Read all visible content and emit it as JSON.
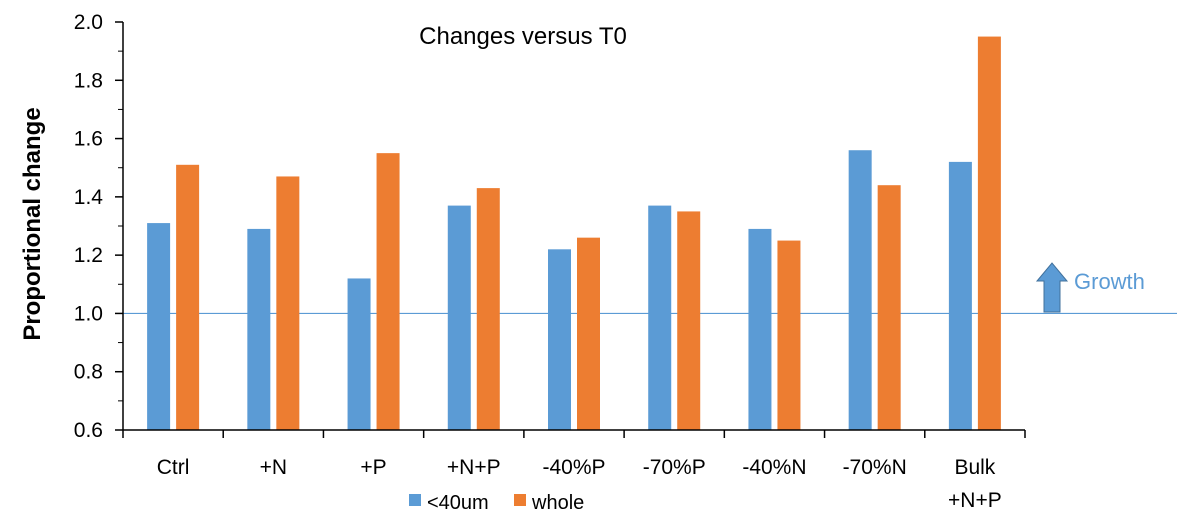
{
  "chart_data": {
    "type": "bar",
    "title": "Changes versus T0",
    "xlabel": "",
    "ylabel": "Proportional change",
    "ylim": [
      0.6,
      2.0
    ],
    "yticks": [
      "0.6",
      "0.8",
      "1.0",
      "1.2",
      "1.4",
      "1.6",
      "1.8",
      "2.0"
    ],
    "categories": [
      [
        "Ctrl"
      ],
      [
        "+N"
      ],
      [
        "+P"
      ],
      [
        "+N+P"
      ],
      [
        "-40%P"
      ],
      [
        "-70%P"
      ],
      [
        "-40%N"
      ],
      [
        "-70%N"
      ],
      [
        "Bulk",
        "+N+P"
      ]
    ],
    "series": [
      {
        "name": "<40um",
        "color": "#5b9bd5",
        "values": [
          1.31,
          1.29,
          1.12,
          1.37,
          1.22,
          1.37,
          1.29,
          1.56,
          1.52
        ]
      },
      {
        "name": "whole",
        "color": "#ed7d31",
        "values": [
          1.51,
          1.47,
          1.55,
          1.43,
          1.26,
          1.35,
          1.25,
          1.44,
          1.95
        ]
      }
    ],
    "reference_line": {
      "value": 1.0,
      "color": "#5b9bd5"
    },
    "annotation": {
      "text": "Growth",
      "icon": "up-arrow-icon",
      "color": "#5b9bd5"
    },
    "legend_position": "bottom-center",
    "grid": false
  }
}
